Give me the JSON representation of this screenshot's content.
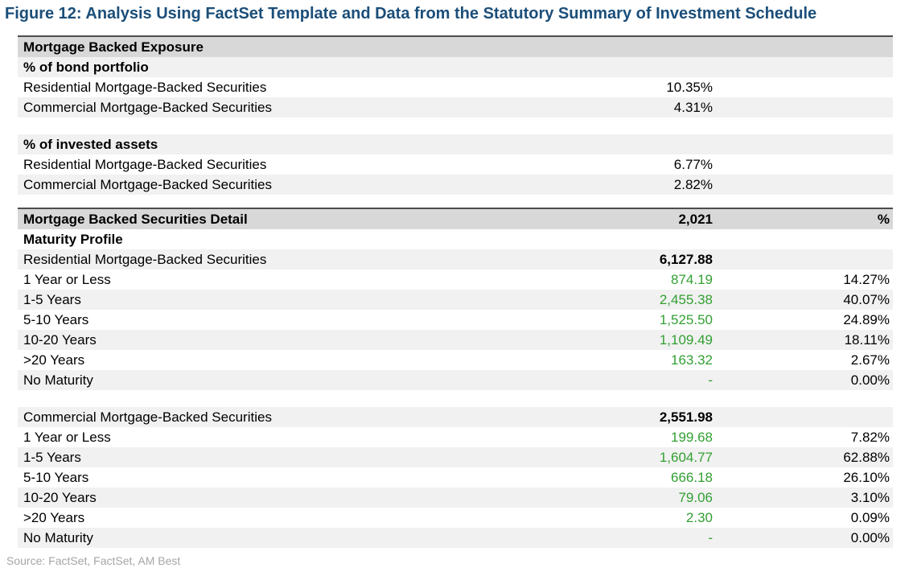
{
  "title": "Figure 12: Analysis Using FactSet Template and Data from the Statutory Summary of Investment Schedule",
  "colors": {
    "title_blue": "#1B4E79",
    "border_dark": "#4D4D4D",
    "header_gray": "#D8D8D8",
    "stripe_gray": "#F1F1F1",
    "value_green": "#33A033",
    "source_gray": "#A6A6A6"
  },
  "exposure": {
    "header": "Mortgage Backed Exposure",
    "sections": [
      {
        "subheader": "% of bond portfolio",
        "rows": [
          {
            "label": "Residential Mortgage-Backed Securities",
            "value": "10.35%"
          },
          {
            "label": "Commercial Mortgage-Backed Securities",
            "value": "4.31%"
          }
        ]
      },
      {
        "subheader": "% of invested assets",
        "rows": [
          {
            "label": "Residential Mortgage-Backed Securities",
            "value": "6.77%"
          },
          {
            "label": "Commercial Mortgage-Backed Securities",
            "value": "2.82%"
          }
        ]
      }
    ]
  },
  "detail": {
    "header": {
      "label": "Mortgage Backed Securities Detail",
      "value": "2,021",
      "pct": "%"
    },
    "profile_label": "Maturity Profile",
    "groups": [
      {
        "label": "Residential Mortgage-Backed Securities",
        "total": "6,127.88",
        "rows": [
          {
            "label": "1 Year or Less",
            "value": "874.19",
            "pct": "14.27%"
          },
          {
            "label": "1-5 Years",
            "value": "2,455.38",
            "pct": "40.07%"
          },
          {
            "label": "5-10 Years",
            "value": "1,525.50",
            "pct": "24.89%"
          },
          {
            "label": "10-20 Years",
            "value": "1,109.49",
            "pct": "18.11%"
          },
          {
            "label": ">20 Years",
            "value": "163.32",
            "pct": "2.67%"
          },
          {
            "label": "No Maturity",
            "value": "-",
            "pct": "0.00%"
          }
        ]
      },
      {
        "label": "Commercial Mortgage-Backed Securities",
        "total": "2,551.98",
        "rows": [
          {
            "label": "1 Year or Less",
            "value": "199.68",
            "pct": "7.82%"
          },
          {
            "label": "1-5 Years",
            "value": "1,604.77",
            "pct": "62.88%"
          },
          {
            "label": "5-10 Years",
            "value": "666.18",
            "pct": "26.10%"
          },
          {
            "label": "10-20 Years",
            "value": "79.06",
            "pct": "3.10%"
          },
          {
            "label": ">20 Years",
            "value": "2.30",
            "pct": "0.09%"
          },
          {
            "label": "No Maturity",
            "value": "-",
            "pct": "0.00%"
          }
        ]
      }
    ]
  },
  "source": "Source: FactSet, FactSet, AM Best"
}
